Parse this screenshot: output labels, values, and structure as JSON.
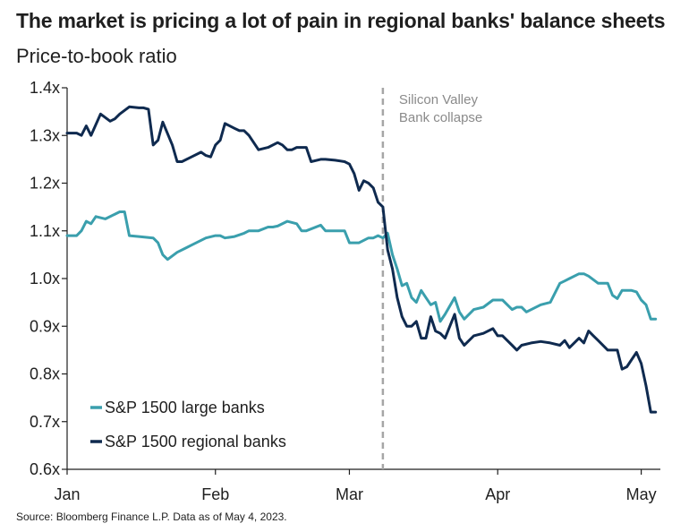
{
  "title": "The market is pricing a lot of pain in regional banks' balance sheets",
  "subtitle": "Price-to-book ratio",
  "source": "Source: Bloomberg Finance L.P. Data as of May 4, 2023.",
  "chart_data": {
    "type": "line",
    "title": "The market is pricing a lot of pain in regional banks' balance sheets",
    "ylabel": "Price-to-book ratio",
    "ylim": [
      0.6,
      1.4
    ],
    "y_ticks": [
      0.6,
      0.7,
      0.8,
      0.9,
      1.0,
      1.1,
      1.2,
      1.3,
      1.4
    ],
    "y_tick_labels": [
      "0.6x",
      "0.7x",
      "0.8x",
      "0.9x",
      "1.0x",
      "1.1x",
      "1.2x",
      "1.3x",
      "1.4x"
    ],
    "xlim": [
      "2023-01-01",
      "2023-05-05"
    ],
    "x_ticks": [
      "2023-01-01",
      "2023-02-01",
      "2023-03-01",
      "2023-04-01",
      "2023-05-01"
    ],
    "x_tick_labels": [
      "Jan",
      "Feb",
      "Mar",
      "Apr",
      "May"
    ],
    "grid": false,
    "legend_position": "bottom-left",
    "annotation": {
      "date": "2023-03-08",
      "lines": [
        "Silicon Valley",
        "Bank collapse"
      ],
      "color": "#a6a6a6"
    },
    "series": [
      {
        "name": "S&P 1500 large banks",
        "color": "#3a9fad",
        "x": [
          "2023-01-01",
          "2023-01-03",
          "2023-01-04",
          "2023-01-05",
          "2023-01-06",
          "2023-01-07",
          "2023-01-09",
          "2023-01-11",
          "2023-01-12",
          "2023-01-13",
          "2023-01-14",
          "2023-01-16",
          "2023-01-19",
          "2023-01-20",
          "2023-01-21",
          "2023-01-22",
          "2023-01-24",
          "2023-01-26",
          "2023-01-27",
          "2023-01-30",
          "2023-02-01",
          "2023-02-02",
          "2023-02-03",
          "2023-02-05",
          "2023-02-07",
          "2023-02-08",
          "2023-02-10",
          "2023-02-12",
          "2023-02-13",
          "2023-02-14",
          "2023-02-16",
          "2023-02-18",
          "2023-02-19",
          "2023-02-20",
          "2023-02-23",
          "2023-02-24",
          "2023-02-26",
          "2023-02-28",
          "2023-03-01",
          "2023-03-02",
          "2023-03-03",
          "2023-03-05",
          "2023-03-06",
          "2023-03-07",
          "2023-03-08",
          "2023-03-09",
          "2023-03-10",
          "2023-03-11",
          "2023-03-12",
          "2023-03-13",
          "2023-03-14",
          "2023-03-15",
          "2023-03-16",
          "2023-03-17",
          "2023-03-18",
          "2023-03-19",
          "2023-03-20",
          "2023-03-21",
          "2023-03-23",
          "2023-03-24",
          "2023-03-25",
          "2023-03-27",
          "2023-03-29",
          "2023-03-31",
          "2023-04-01",
          "2023-04-02",
          "2023-04-04",
          "2023-04-05",
          "2023-04-06",
          "2023-04-07",
          "2023-04-10",
          "2023-04-12",
          "2023-04-14",
          "2023-04-15",
          "2023-04-16",
          "2023-04-18",
          "2023-04-19",
          "2023-04-20",
          "2023-04-22",
          "2023-04-24",
          "2023-04-25",
          "2023-04-26",
          "2023-04-27",
          "2023-04-29",
          "2023-04-30",
          "2023-05-01",
          "2023-05-02",
          "2023-05-03",
          "2023-05-04"
        ],
        "y": [
          1.09,
          1.09,
          1.1,
          1.12,
          1.115,
          1.13,
          1.125,
          1.135,
          1.14,
          1.14,
          1.09,
          1.088,
          1.085,
          1.075,
          1.05,
          1.04,
          1.055,
          1.065,
          1.07,
          1.085,
          1.09,
          1.09,
          1.085,
          1.088,
          1.095,
          1.1,
          1.1,
          1.108,
          1.108,
          1.11,
          1.12,
          1.115,
          1.1,
          1.1,
          1.112,
          1.1,
          1.1,
          1.1,
          1.075,
          1.075,
          1.075,
          1.085,
          1.085,
          1.09,
          1.085,
          1.095,
          1.05,
          1.02,
          0.985,
          0.99,
          0.96,
          0.95,
          0.975,
          0.96,
          0.945,
          0.95,
          0.91,
          0.925,
          0.96,
          0.93,
          0.915,
          0.935,
          0.94,
          0.955,
          0.955,
          0.955,
          0.935,
          0.94,
          0.94,
          0.93,
          0.945,
          0.95,
          0.99,
          0.995,
          1.0,
          1.01,
          1.01,
          1.005,
          0.99,
          0.99,
          0.965,
          0.958,
          0.975,
          0.975,
          0.972,
          0.955,
          0.945,
          0.915,
          0.915
        ]
      },
      {
        "name": "S&P 1500 regional banks",
        "color": "#0f2a4f",
        "x": [
          "2023-01-01",
          "2023-01-03",
          "2023-01-04",
          "2023-01-05",
          "2023-01-06",
          "2023-01-08",
          "2023-01-10",
          "2023-01-11",
          "2023-01-12",
          "2023-01-14",
          "2023-01-16",
          "2023-01-17",
          "2023-01-18",
          "2023-01-19",
          "2023-01-20",
          "2023-01-21",
          "2023-01-23",
          "2023-01-24",
          "2023-01-25",
          "2023-01-27",
          "2023-01-29",
          "2023-01-30",
          "2023-01-31",
          "2023-02-01",
          "2023-02-02",
          "2023-02-03",
          "2023-02-05",
          "2023-02-06",
          "2023-02-07",
          "2023-02-08",
          "2023-02-10",
          "2023-02-12",
          "2023-02-14",
          "2023-02-15",
          "2023-02-16",
          "2023-02-17",
          "2023-02-18",
          "2023-02-20",
          "2023-02-21",
          "2023-02-23",
          "2023-02-24",
          "2023-02-26",
          "2023-02-28",
          "2023-03-01",
          "2023-03-02",
          "2023-03-03",
          "2023-03-04",
          "2023-03-05",
          "2023-03-06",
          "2023-03-07",
          "2023-03-08",
          "2023-03-09",
          "2023-03-10",
          "2023-03-11",
          "2023-03-12",
          "2023-03-13",
          "2023-03-14",
          "2023-03-15",
          "2023-03-16",
          "2023-03-17",
          "2023-03-18",
          "2023-03-19",
          "2023-03-20",
          "2023-03-21",
          "2023-03-23",
          "2023-03-24",
          "2023-03-25",
          "2023-03-27",
          "2023-03-29",
          "2023-03-31",
          "2023-04-01",
          "2023-04-02",
          "2023-04-04",
          "2023-04-05",
          "2023-04-06",
          "2023-04-08",
          "2023-04-10",
          "2023-04-12",
          "2023-04-14",
          "2023-04-15",
          "2023-04-16",
          "2023-04-18",
          "2023-04-19",
          "2023-04-20",
          "2023-04-21",
          "2023-04-22",
          "2023-04-24",
          "2023-04-25",
          "2023-04-26",
          "2023-04-27",
          "2023-04-28",
          "2023-04-29",
          "2023-04-30",
          "2023-05-01",
          "2023-05-02",
          "2023-05-03",
          "2023-05-04"
        ],
        "y": [
          1.305,
          1.305,
          1.3,
          1.32,
          1.3,
          1.345,
          1.33,
          1.335,
          1.345,
          1.36,
          1.358,
          1.358,
          1.355,
          1.28,
          1.29,
          1.328,
          1.28,
          1.245,
          1.245,
          1.255,
          1.265,
          1.258,
          1.255,
          1.28,
          1.29,
          1.325,
          1.315,
          1.31,
          1.31,
          1.3,
          1.27,
          1.275,
          1.285,
          1.28,
          1.27,
          1.27,
          1.275,
          1.275,
          1.245,
          1.25,
          1.25,
          1.248,
          1.245,
          1.24,
          1.22,
          1.185,
          1.205,
          1.2,
          1.19,
          1.16,
          1.15,
          1.06,
          1.02,
          0.96,
          0.92,
          0.9,
          0.9,
          0.91,
          0.875,
          0.875,
          0.92,
          0.89,
          0.885,
          0.875,
          0.925,
          0.875,
          0.86,
          0.88,
          0.885,
          0.895,
          0.88,
          0.88,
          0.86,
          0.85,
          0.86,
          0.865,
          0.868,
          0.865,
          0.86,
          0.87,
          0.855,
          0.875,
          0.865,
          0.89,
          0.88,
          0.87,
          0.85,
          0.85,
          0.85,
          0.81,
          0.815,
          0.83,
          0.845,
          0.822,
          0.775,
          0.72,
          0.72
        ]
      }
    ]
  }
}
